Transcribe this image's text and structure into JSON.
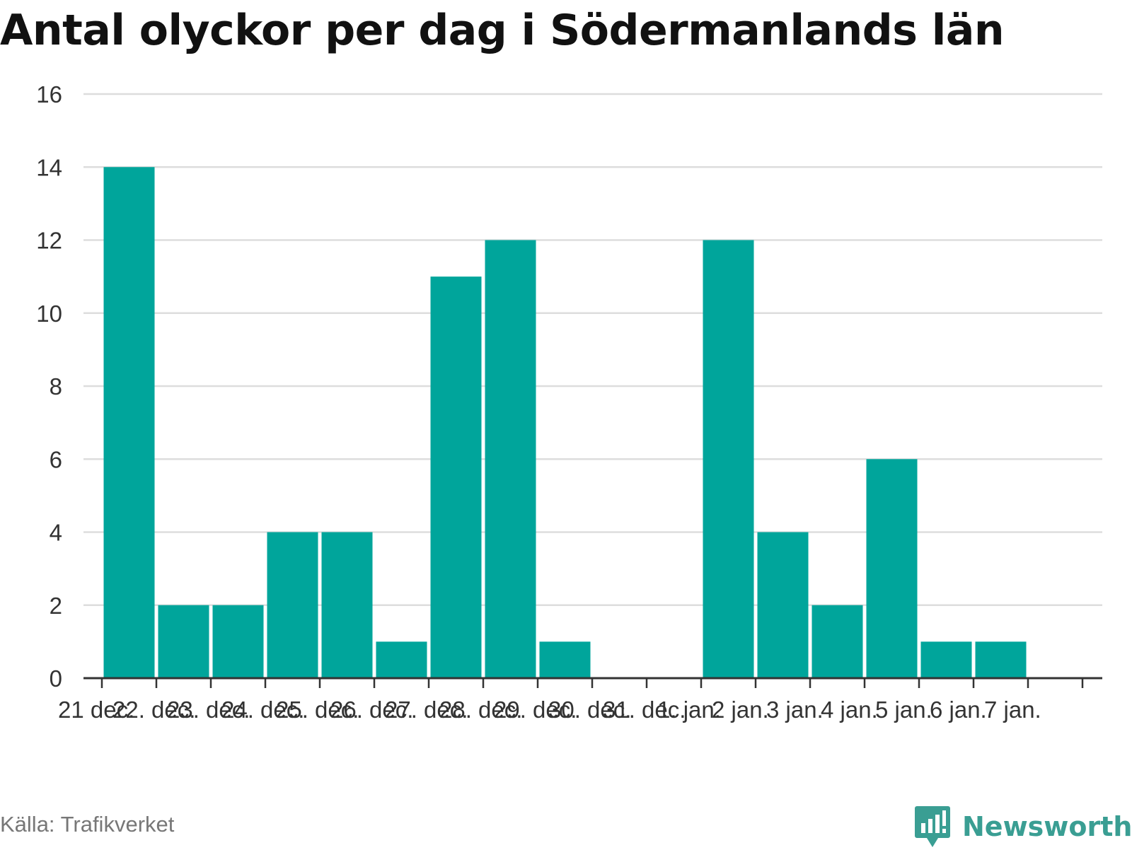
{
  "title": "Antal olyckor per dag i Södermanlands län",
  "source": "Källa: Trafikverket",
  "brand": "Newsworthy",
  "colors": {
    "bar": "#00a59b",
    "grid": "#dddddd",
    "axis": "#333333",
    "text": "#333333"
  },
  "chart_data": {
    "type": "bar",
    "title": "Antal olyckor per dag i Södermanlands län",
    "xlabel": "",
    "ylabel": "",
    "ylim": [
      0,
      16
    ],
    "yticks": [
      0,
      2,
      4,
      6,
      8,
      10,
      12,
      14,
      16
    ],
    "grid": true,
    "categories": [
      "21 dec.",
      "22. dec.",
      "23. dec.",
      "24. dec.",
      "25. dec.",
      "26. dec.",
      "27. dec.",
      "28. dec.",
      "29. dec.",
      "30. dec.",
      "31. dec.",
      "1. jan.",
      "2 jan.",
      "3 jan.",
      "4 jan.",
      "5 jan.",
      "6 jan.",
      "7 jan."
    ],
    "values": [
      14,
      2,
      2,
      4,
      4,
      1,
      11,
      12,
      1,
      0,
      0,
      12,
      4,
      2,
      6,
      1,
      1,
      0
    ]
  }
}
